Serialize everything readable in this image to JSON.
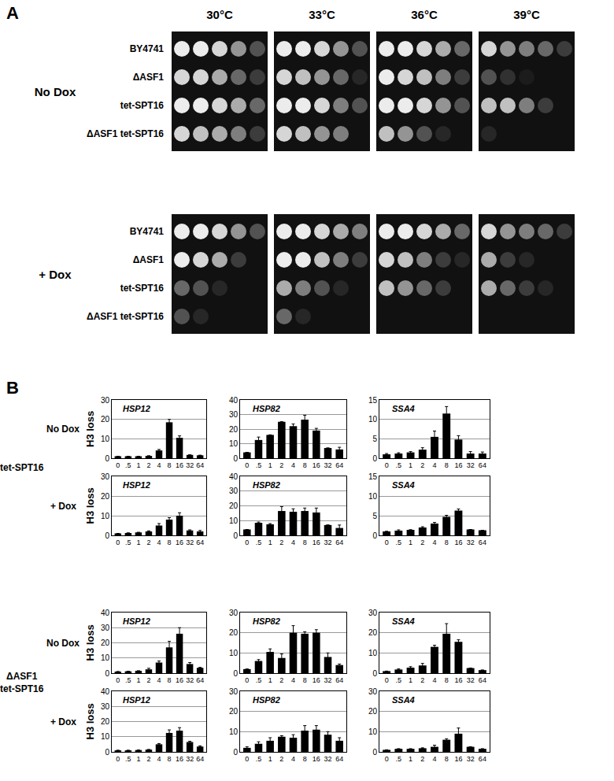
{
  "figure": {
    "panel_a": {
      "label": "A",
      "temperatures": [
        "30°C",
        "33°C",
        "36°C",
        "39°C"
      ],
      "conditions": [
        {
          "name": "No Dox",
          "strains": [
            {
              "name": "BY4741",
              "growth": [
                [
                  1,
                  1,
                  0.9,
                  0.6,
                  0.3
                ],
                [
                  1,
                  1,
                  0.9,
                  0.6,
                  0.3
                ],
                [
                  1,
                  1,
                  0.9,
                  0.7,
                  0.4
                ],
                [
                  0.9,
                  0.6,
                  0.5,
                  0.4,
                  0.2
                ]
              ]
            },
            {
              "name": "ΔASF1",
              "growth": [
                [
                  0.9,
                  0.9,
                  0.7,
                  0.4,
                  0.2
                ],
                [
                  0.9,
                  0.8,
                  0.6,
                  0.4,
                  0.1
                ],
                [
                  1,
                  0.9,
                  0.8,
                  0.5,
                  0.2
                ],
                [
                  0.3,
                  0.15,
                  0.05,
                  0,
                  0
                ]
              ]
            },
            {
              "name": "tet-SPT16",
              "growth": [
                [
                  1,
                  1,
                  0.9,
                  0.7,
                  0.4
                ],
                [
                  1,
                  1,
                  0.9,
                  0.5,
                  0.3
                ],
                [
                  1,
                  1,
                  0.9,
                  0.6,
                  0.3
                ],
                [
                  0.8,
                  0.8,
                  0.5,
                  0.2,
                  0
                ]
              ]
            },
            {
              "name": "ΔASF1 tet-SPT16",
              "growth": [
                [
                  0.9,
                  0.8,
                  0.7,
                  0.5,
                  0.2
                ],
                [
                  0.9,
                  0.8,
                  0.6,
                  0.5,
                  0
                ],
                [
                  0.8,
                  0.6,
                  0.3,
                  0.1,
                  0
                ],
                [
                  0.1,
                  0,
                  0,
                  0,
                  0
                ]
              ]
            }
          ]
        },
        {
          "name": "+ Dox",
          "strains": [
            {
              "name": "BY4741",
              "growth": [
                [
                  1,
                  1,
                  0.9,
                  0.6,
                  0.3
                ],
                [
                  1,
                  1,
                  0.9,
                  0.7,
                  0.5
                ],
                [
                  1,
                  1,
                  0.9,
                  0.7,
                  0.4
                ],
                [
                  0.9,
                  0.6,
                  0.5,
                  0.4,
                  0.2
                ]
              ]
            },
            {
              "name": "ΔASF1",
              "growth": [
                [
                  1,
                  0.9,
                  0.7,
                  0.2,
                  0
                ],
                [
                  1,
                  1,
                  0.8,
                  0.5,
                  0.2
                ],
                [
                  0.9,
                  0.8,
                  0.5,
                  0.2,
                  0.1
                ],
                [
                  0.7,
                  0.2,
                  0.1,
                  0,
                  0
                ]
              ]
            },
            {
              "name": "tet-SPT16",
              "growth": [
                [
                  0.4,
                  0.3,
                  0.1,
                  0,
                  0
                ],
                [
                  0.7,
                  0.5,
                  0.3,
                  0.1,
                  0
                ],
                [
                  0.8,
                  0.6,
                  0.4,
                  0.2,
                  0
                ],
                [
                  0.7,
                  0.4,
                  0.2,
                  0.1,
                  0
                ]
              ]
            },
            {
              "name": "ΔASF1 tet-SPT16",
              "growth": [
                [
                  0.3,
                  0.1,
                  0,
                  0,
                  0
                ],
                [
                  0.4,
                  0.1,
                  0,
                  0,
                  0
                ],
                [
                  0,
                  0,
                  0,
                  0,
                  0
                ],
                [
                  0,
                  0,
                  0,
                  0,
                  0
                ]
              ]
            }
          ]
        }
      ]
    },
    "panel_b": {
      "label": "B",
      "ylabel": "H3 loss",
      "groups": [
        {
          "name": "tet-SPT16",
          "conditions": [
            "No Dox",
            "+ Dox"
          ]
        },
        {
          "name": "ΔASF1 tet-SPT16",
          "conditions": [
            "No Dox",
            "+ Dox"
          ]
        }
      ]
    }
  },
  "chart_data": [
    {
      "type": "bar",
      "title": "HSP12",
      "categories": [
        "0",
        ".5",
        "1",
        "2",
        "4",
        "8",
        "16",
        "32",
        "64"
      ],
      "values": [
        1,
        1,
        1,
        1.2,
        4,
        18.5,
        10.5,
        1.7,
        1.5
      ],
      "errors": [
        0,
        0,
        0,
        0,
        0.5,
        1.5,
        1,
        0,
        0
      ],
      "ylim": [
        0,
        30
      ],
      "yticks": [
        0,
        10,
        20,
        30
      ],
      "grid": true,
      "color": "#000000"
    },
    {
      "type": "bar",
      "title": "HSP82",
      "categories": [
        "0",
        ".5",
        "1",
        "2",
        "4",
        "8",
        "16",
        "32",
        "64"
      ],
      "values": [
        4,
        12.5,
        16,
        25,
        22,
        26.5,
        19,
        7,
        6
      ],
      "errors": [
        0,
        2,
        0,
        0,
        1.5,
        3,
        1.5,
        0,
        1.5
      ],
      "ylim": [
        0,
        40
      ],
      "yticks": [
        0,
        10,
        20,
        30,
        40
      ],
      "grid": true,
      "color": "#000000"
    },
    {
      "type": "bar",
      "title": "SSA4",
      "categories": [
        "0",
        ".5",
        "1",
        "2",
        "4",
        "8",
        "16",
        "32",
        "64"
      ],
      "values": [
        1,
        1.2,
        1.5,
        2.2,
        5.5,
        11.5,
        4.8,
        1.2,
        1.2
      ],
      "errors": [
        0.2,
        0.2,
        0.2,
        0.5,
        1.5,
        1.8,
        1,
        0.5,
        0.4
      ],
      "ylim": [
        0,
        15
      ],
      "yticks": [
        0,
        5,
        10,
        15
      ],
      "grid": true,
      "color": "#000000"
    },
    {
      "type": "bar",
      "title": "HSP12",
      "categories": [
        "0",
        ".5",
        "1",
        "2",
        "4",
        "8",
        "16",
        "32",
        "64"
      ],
      "values": [
        1,
        1.2,
        1.5,
        2,
        5,
        8,
        10,
        2.5,
        2
      ],
      "errors": [
        0,
        0,
        0,
        0.3,
        1,
        1,
        1.5,
        0.3,
        0.5
      ],
      "ylim": [
        0,
        30
      ],
      "yticks": [
        0,
        10,
        20,
        30
      ],
      "grid": true,
      "color": "#000000"
    },
    {
      "type": "bar",
      "title": "HSP82",
      "categories": [
        "0",
        ".5",
        "1",
        "2",
        "4",
        "8",
        "16",
        "32",
        "64"
      ],
      "values": [
        4,
        8.5,
        7.5,
        16.5,
        16,
        16.5,
        15.5,
        7,
        5
      ],
      "errors": [
        0,
        0.5,
        0.5,
        3,
        2,
        2,
        3,
        0,
        2
      ],
      "ylim": [
        0,
        40
      ],
      "yticks": [
        0,
        10,
        20,
        30,
        40
      ],
      "grid": true,
      "color": "#000000"
    },
    {
      "type": "bar",
      "title": "SSA4",
      "categories": [
        "0",
        ".5",
        "1",
        "2",
        "4",
        "8",
        "16",
        "32",
        "64"
      ],
      "values": [
        1,
        1.2,
        1.4,
        2,
        3,
        4.7,
        6.3,
        1.5,
        1.3
      ],
      "errors": [
        0,
        0.2,
        0,
        0.2,
        0.3,
        0.4,
        0.4,
        0,
        0
      ],
      "ylim": [
        0,
        15
      ],
      "yticks": [
        0,
        5,
        10,
        15
      ],
      "grid": true,
      "color": "#000000"
    },
    {
      "type": "bar",
      "title": "HSP12",
      "categories": [
        "0",
        ".5",
        "1",
        "2",
        "4",
        "8",
        "16",
        "32",
        "64"
      ],
      "values": [
        1,
        1.2,
        1.5,
        2.5,
        7,
        17,
        26,
        6,
        3.5
      ],
      "errors": [
        0,
        0,
        0,
        0.7,
        1,
        4,
        4,
        1,
        0.3
      ],
      "ylim": [
        0,
        40
      ],
      "yticks": [
        0,
        10,
        20,
        30,
        40
      ],
      "grid": true,
      "color": "#000000"
    },
    {
      "type": "bar",
      "title": "HSP82",
      "categories": [
        "0",
        ".5",
        "1",
        "2",
        "4",
        "8",
        "16",
        "32",
        "64"
      ],
      "values": [
        2,
        6,
        10.5,
        7.5,
        20,
        19.5,
        20,
        8,
        4
      ],
      "errors": [
        0,
        0.7,
        1.5,
        2,
        3.5,
        1,
        1.5,
        2,
        0.5
      ],
      "ylim": [
        0,
        30
      ],
      "yticks": [
        0,
        10,
        20,
        30
      ],
      "grid": true,
      "color": "#000000"
    },
    {
      "type": "bar",
      "title": "SSA4",
      "categories": [
        "0",
        ".5",
        "1",
        "2",
        "4",
        "8",
        "16",
        "32",
        "64"
      ],
      "values": [
        1,
        1.8,
        2.7,
        3.8,
        13,
        19.5,
        15.5,
        2.5,
        1.5
      ],
      "errors": [
        0,
        0.3,
        0.5,
        1,
        0.8,
        5,
        1,
        0,
        0
      ],
      "ylim": [
        0,
        30
      ],
      "yticks": [
        0,
        10,
        20,
        30
      ],
      "grid": true,
      "color": "#000000"
    },
    {
      "type": "bar",
      "title": "HSP12",
      "categories": [
        "0",
        ".5",
        "1",
        "2",
        "4",
        "8",
        "16",
        "32",
        "64"
      ],
      "values": [
        1,
        1,
        1.2,
        1.5,
        5,
        12.5,
        14,
        6.5,
        3.5
      ],
      "errors": [
        0,
        0,
        0,
        0,
        0.5,
        2,
        2,
        0.5,
        0.5
      ],
      "ylim": [
        0,
        40
      ],
      "yticks": [
        0,
        10,
        20,
        30,
        40
      ],
      "grid": true,
      "color": "#000000"
    },
    {
      "type": "bar",
      "title": "HSP82",
      "categories": [
        "0",
        ".5",
        "1",
        "2",
        "4",
        "8",
        "16",
        "32",
        "64"
      ],
      "values": [
        2,
        4,
        5.5,
        7.5,
        7,
        10.5,
        11,
        8.5,
        5.5
      ],
      "errors": [
        0.5,
        1,
        1.5,
        0.5,
        1.5,
        2.5,
        2,
        1.5,
        1.5
      ],
      "ylim": [
        0,
        30
      ],
      "yticks": [
        0,
        10,
        20,
        30
      ],
      "grid": true,
      "color": "#000000"
    },
    {
      "type": "bar",
      "title": "SSA4",
      "categories": [
        "0",
        ".5",
        "1",
        "2",
        "4",
        "8",
        "16",
        "32",
        "64"
      ],
      "values": [
        1,
        1.5,
        1.5,
        1.8,
        2.5,
        6,
        9,
        2.5,
        1.5
      ],
      "errors": [
        0,
        0,
        0,
        0.2,
        0.8,
        0.5,
        2.8,
        0,
        0
      ],
      "ylim": [
        0,
        30
      ],
      "yticks": [
        0,
        10,
        20,
        30
      ],
      "grid": true,
      "color": "#000000"
    }
  ]
}
